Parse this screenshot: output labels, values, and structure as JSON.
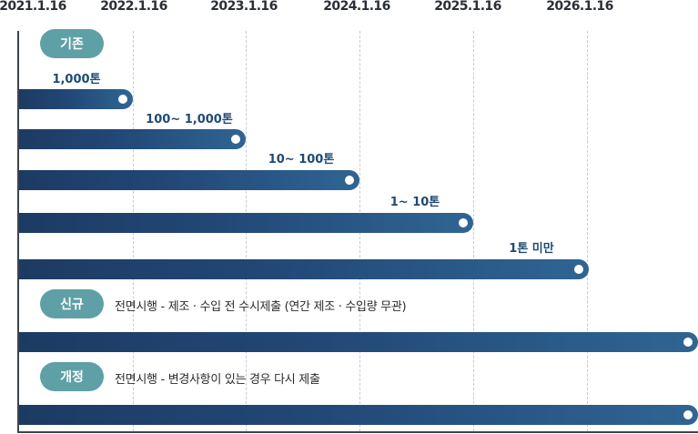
{
  "dates": [
    "2021.1.16",
    "2022.1.16",
    "2023.1.16",
    "2024.1.16",
    "2025.1.16",
    "2026.1.16"
  ],
  "existing": {
    "badge": "기존",
    "bars": [
      {
        "label": "1,000톤",
        "end": "2022.1.16"
      },
      {
        "label": "100~ 1,000톤",
        "end": "2023.1.16"
      },
      {
        "label": "10~ 100톤",
        "end": "2024.1.16"
      },
      {
        "label": "1~ 10톤",
        "end": "2025.1.16"
      },
      {
        "label": "1톤 미만",
        "end": "2026.1.16"
      }
    ]
  },
  "new_rule": {
    "badge": "신규",
    "text": "전면시행 - 제조 · 수입 전 수시제출 (연간 제조 · 수입량 무관)"
  },
  "revision": {
    "badge": "개정",
    "text": "전면시행 - 변경사항이 있는 경우 다시 제출"
  },
  "colors": {
    "bar_dark": "#1c3b63",
    "bar_light": "#2f6593",
    "badge": "#5fa0a6",
    "label": "#1f4a73"
  }
}
